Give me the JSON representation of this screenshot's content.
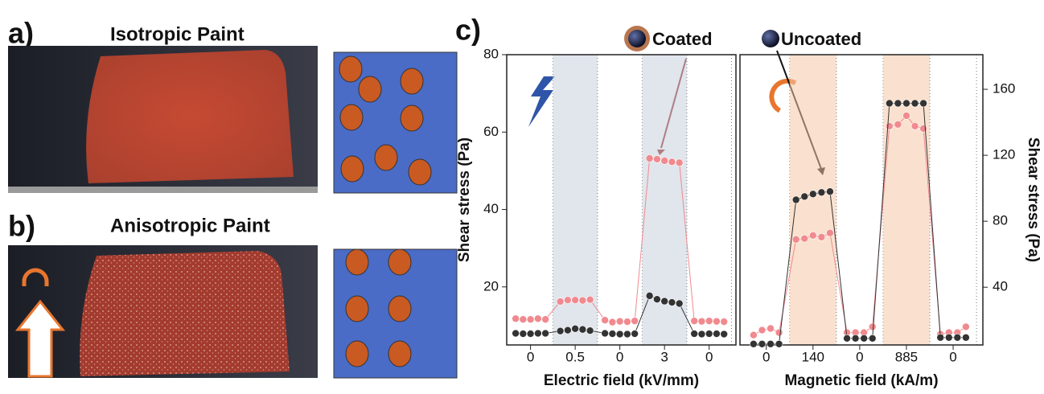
{
  "panels": [
    {
      "label": "a)",
      "title": "Isotropic Paint"
    },
    {
      "label": "b)",
      "title": "Anisotropic Paint"
    }
  ],
  "panel_c_label": "c)",
  "legend": [
    {
      "name": "Coated",
      "color": "#8b1a1a"
    },
    {
      "name": "Uncoated",
      "color": "#111111"
    }
  ],
  "chart_data": [
    {
      "type": "line",
      "xlabel": "Electric field (kV/mm)",
      "ylabel": "Shear stress (Pa)",
      "x": [
        0,
        1,
        2,
        3,
        4,
        6,
        7,
        8,
        9,
        10,
        12,
        13,
        14,
        15,
        16,
        18,
        19,
        20,
        21,
        22,
        24,
        25,
        26,
        27,
        28
      ],
      "xlim": [
        -1.2,
        29.6
      ],
      "xticks": [
        {
          "value": 2,
          "label": "0"
        },
        {
          "value": 8,
          "label": "0.5"
        },
        {
          "value": 14,
          "label": "0"
        },
        {
          "value": 20,
          "label": "3"
        },
        {
          "value": 26,
          "label": "0"
        }
      ],
      "ylim": [
        5,
        80
      ],
      "yticks": [
        20,
        40,
        60,
        80
      ],
      "shade_color": "#c9d0dc",
      "series": [
        {
          "color": "#f08a8f",
          "values": [
            11.8,
            11.6,
            11.6,
            11.8,
            11.6,
            16.2,
            16.6,
            16.6,
            16.5,
            16.7,
            11.4,
            10.9,
            11.1,
            11.0,
            11.2,
            53.2,
            53.0,
            52.6,
            52.3,
            52.1,
            11.2,
            11.1,
            11.2,
            11.1,
            11.0
          ]
        },
        {
          "color": "#333333",
          "values": [
            8.0,
            7.9,
            7.9,
            8.0,
            8.0,
            8.6,
            8.8,
            9.2,
            9.0,
            8.7,
            8.0,
            7.9,
            7.8,
            7.8,
            7.9,
            17.7,
            16.8,
            16.3,
            16.0,
            15.7,
            7.9,
            7.8,
            7.9,
            7.9,
            7.8
          ]
        }
      ]
    },
    {
      "type": "line",
      "xlabel": "Magnetic field (kA/m)",
      "y2label": "Shear stress (Pa)",
      "x": [
        0,
        1,
        2,
        3,
        5,
        6,
        7,
        8,
        9,
        11,
        12,
        13,
        14,
        16,
        17,
        18,
        19,
        20,
        22,
        23,
        24,
        25
      ],
      "xlim": [
        -1.6,
        27
      ],
      "xticks": [
        {
          "value": 1.5,
          "label": "0"
        },
        {
          "value": 7,
          "label": "140"
        },
        {
          "value": 12.5,
          "label": "0"
        },
        {
          "value": 18,
          "label": "885"
        },
        {
          "value": 23.5,
          "label": "0"
        }
      ],
      "y2lim": [
        5,
        181
      ],
      "y2ticks": [
        40,
        80,
        120,
        160
      ],
      "shade_color": "#f6c9a8",
      "series": [
        {
          "axis": "y2",
          "color": "#f08a8f",
          "values": [
            11,
            14,
            15,
            12.5,
            69,
            69.5,
            71.4,
            70.4,
            72.9,
            12.5,
            12.5,
            12.5,
            16,
            137.7,
            138.7,
            144,
            137.7,
            136.2,
            11.5,
            12.5,
            12.5,
            16
          ]
        },
        {
          "axis": "y2",
          "color": "#333333",
          "values": [
            5.6,
            5.6,
            5.6,
            5.6,
            93,
            95,
            96.5,
            97.5,
            98,
            9,
            9,
            9,
            9,
            151.5,
            151.5,
            151.5,
            151.5,
            151.5,
            9.5,
            9.5,
            9.5,
            9.5
          ]
        }
      ]
    }
  ]
}
